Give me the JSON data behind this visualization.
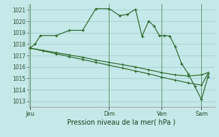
{
  "xlabel": "Pression niveau de la mer( hPa )",
  "bg_color": "#c5e8e8",
  "grid_color": "#99cccc",
  "line_color": "#2d6b2d",
  "ylim": [
    1012.5,
    1021.5
  ],
  "yticks": [
    1013,
    1014,
    1015,
    1016,
    1017,
    1018,
    1019,
    1020,
    1021
  ],
  "day_labels": [
    "Jeu",
    "Dim",
    "Ven",
    "Sam"
  ],
  "day_positions": [
    0.0,
    3.0,
    5.0,
    6.5
  ],
  "xlim": [
    -0.05,
    7.0
  ],
  "series1_x": [
    0.0,
    0.2,
    0.4,
    1.0,
    1.5,
    2.0,
    2.5,
    3.0,
    3.4,
    3.7,
    4.0,
    4.25,
    4.5,
    4.7,
    4.9,
    5.1,
    5.3,
    5.5,
    5.75,
    6.0,
    6.25,
    6.5,
    6.75
  ],
  "series1_y": [
    1017.65,
    1018.0,
    1018.75,
    1018.75,
    1019.2,
    1019.2,
    1021.1,
    1021.1,
    1020.5,
    1020.6,
    1021.05,
    1018.7,
    1020.0,
    1019.6,
    1018.75,
    1018.75,
    1018.7,
    1017.8,
    1016.3,
    1015.4,
    1014.3,
    1013.15,
    1015.15
  ],
  "series2_x": [
    0.0,
    0.5,
    1.0,
    1.5,
    2.0,
    2.5,
    3.0,
    3.5,
    4.0,
    4.5,
    5.0,
    5.5,
    6.0,
    6.5,
    6.75
  ],
  "series2_y": [
    1017.65,
    1017.45,
    1017.25,
    1017.05,
    1016.85,
    1016.6,
    1016.4,
    1016.2,
    1016.0,
    1015.75,
    1015.5,
    1015.3,
    1015.2,
    1015.3,
    1015.5
  ],
  "series3_x": [
    0.0,
    0.5,
    1.0,
    1.5,
    2.0,
    2.5,
    3.0,
    3.5,
    4.0,
    4.5,
    5.0,
    5.5,
    6.0,
    6.5,
    6.75
  ],
  "series3_y": [
    1017.65,
    1017.4,
    1017.15,
    1016.9,
    1016.65,
    1016.4,
    1016.15,
    1015.9,
    1015.65,
    1015.4,
    1015.1,
    1014.85,
    1014.6,
    1014.4,
    1015.4
  ]
}
